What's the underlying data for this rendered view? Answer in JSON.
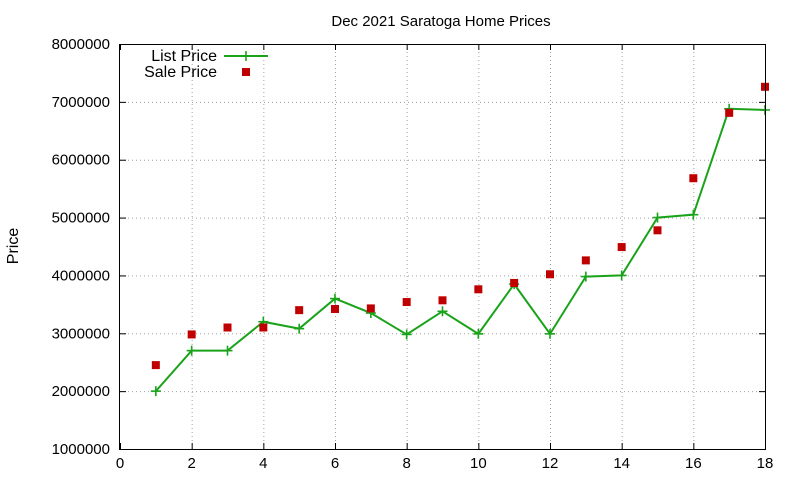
{
  "chart_data": {
    "type": "line",
    "title": "Dec 2021 Saratoga Home Prices",
    "xlabel": "",
    "ylabel": "Price",
    "xlim": [
      0,
      18
    ],
    "ylim": [
      1000000,
      8000000
    ],
    "x_ticks": [
      0,
      2,
      4,
      6,
      8,
      10,
      12,
      14,
      16,
      18
    ],
    "y_ticks": [
      1000000,
      2000000,
      3000000,
      4000000,
      5000000,
      6000000,
      7000000,
      8000000
    ],
    "grid": true,
    "legend_position": "top-left",
    "series": [
      {
        "name": "List Price",
        "style": "line-with-plus-markers",
        "color": "#1aa31a",
        "x": [
          1,
          2,
          3,
          4,
          5,
          6,
          7,
          8,
          9,
          10,
          11,
          12,
          13,
          14,
          15,
          16,
          17,
          18
        ],
        "values": [
          2000000,
          2700000,
          2700000,
          3200000,
          3080000,
          3600000,
          3350000,
          2980000,
          3380000,
          2990000,
          3850000,
          2990000,
          3980000,
          4000000,
          5000000,
          5050000,
          6880000,
          6860000
        ]
      },
      {
        "name": "Sale Price",
        "style": "square-markers",
        "color": "#c00000",
        "x": [
          1,
          2,
          3,
          4,
          5,
          6,
          7,
          8,
          9,
          10,
          11,
          12,
          13,
          14,
          15,
          16,
          17,
          18
        ],
        "values": [
          2450000,
          2980000,
          3100000,
          3100000,
          3400000,
          3420000,
          3430000,
          3540000,
          3570000,
          3760000,
          3870000,
          4020000,
          4260000,
          4490000,
          4780000,
          5680000,
          6810000,
          7260000
        ]
      }
    ]
  }
}
